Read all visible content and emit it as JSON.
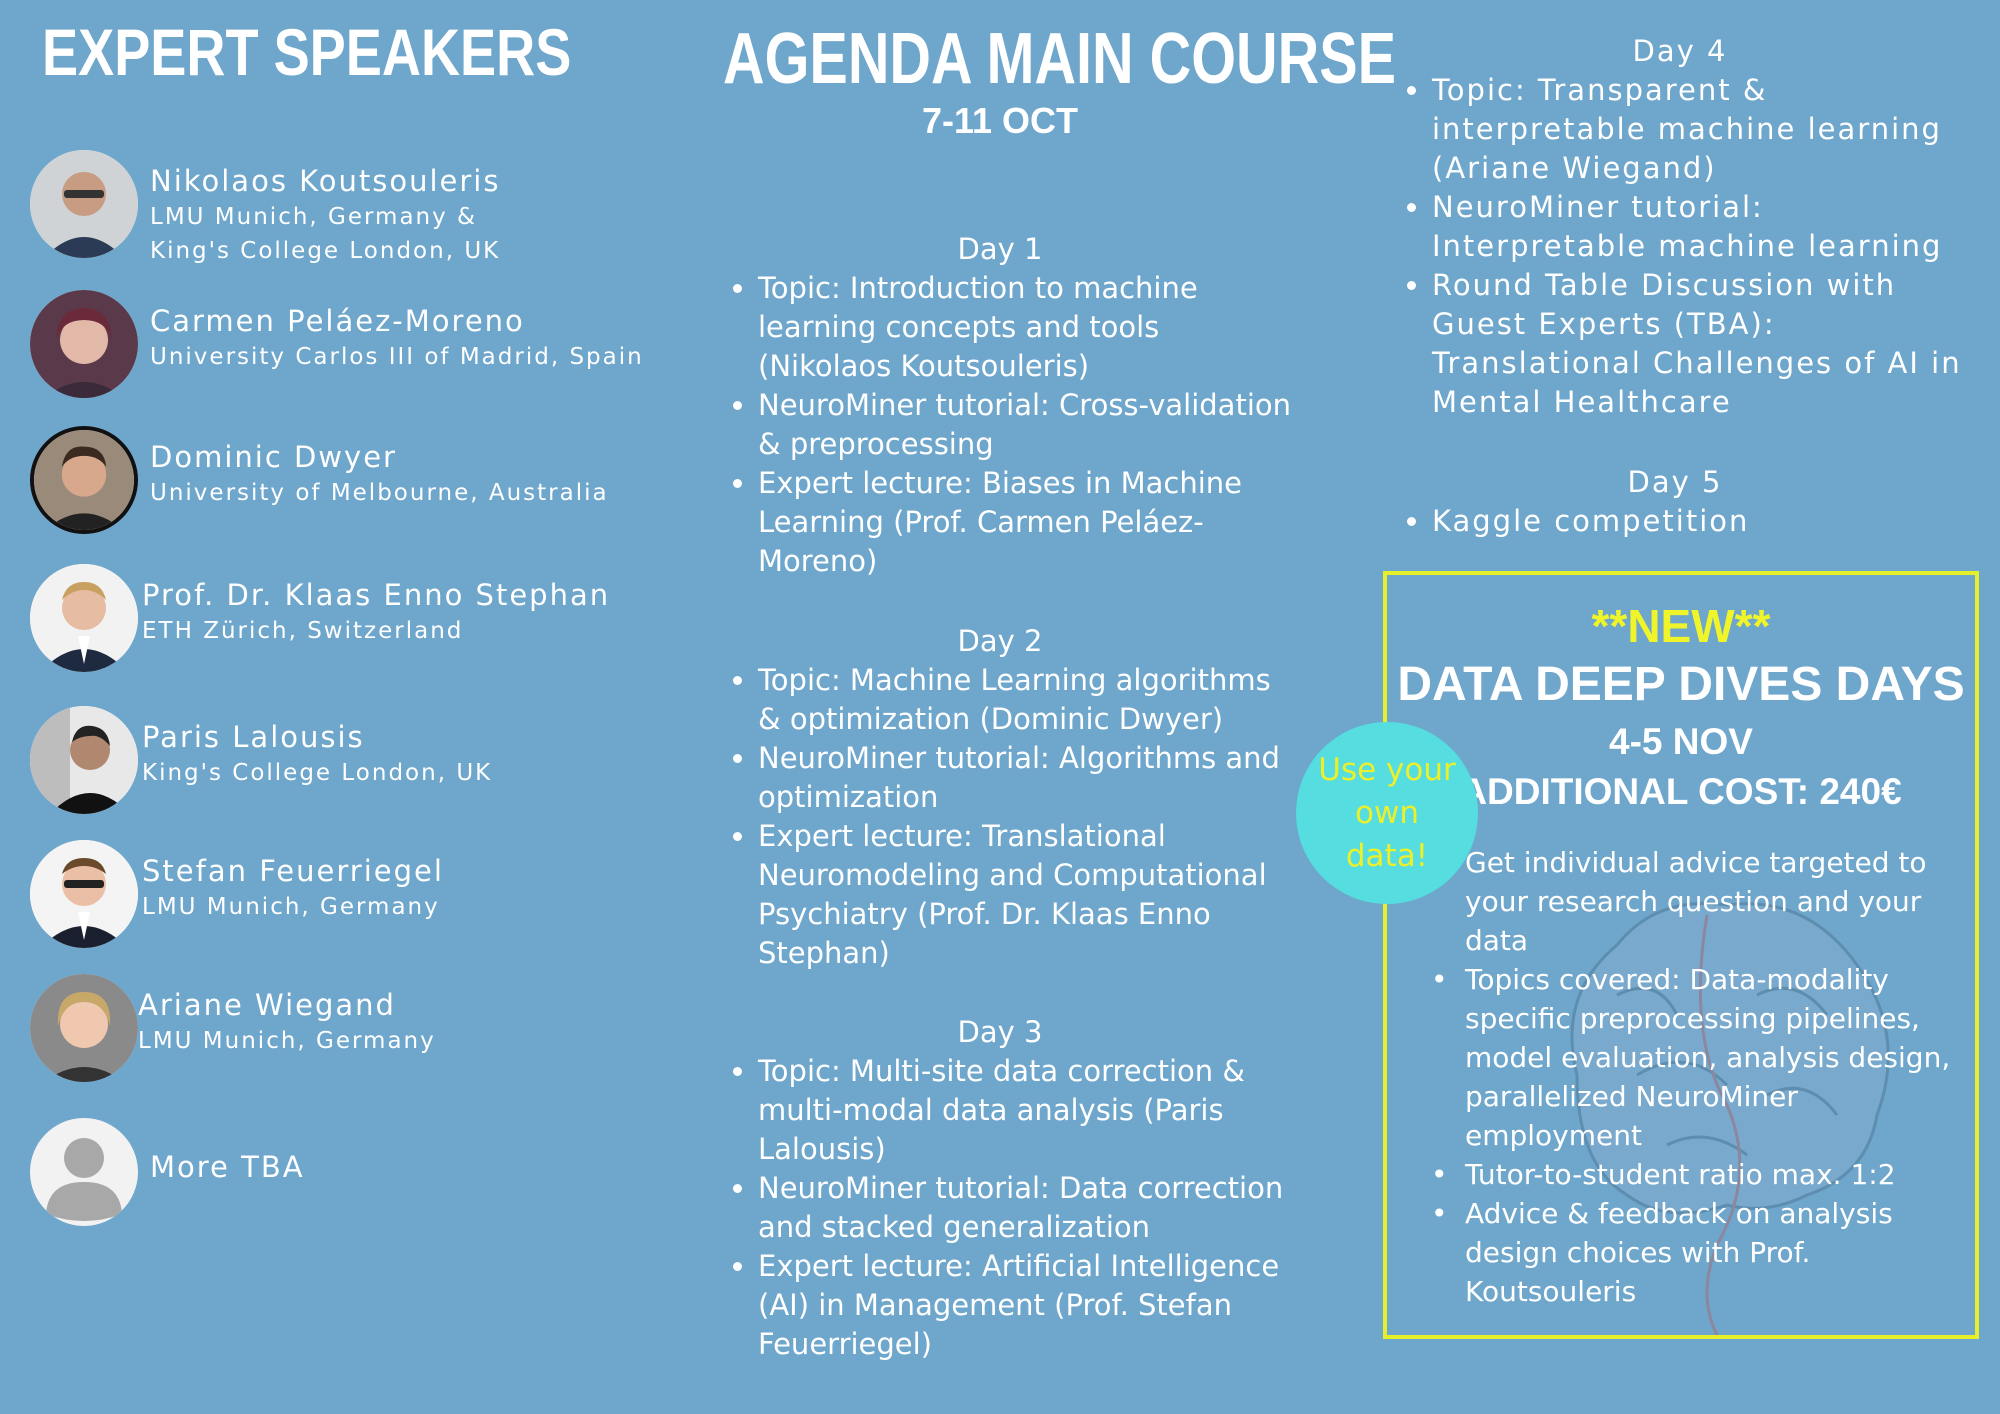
{
  "speakers": {
    "title": "EXPERT SPEAKERS",
    "items": [
      {
        "name": "Nikolaos Koutsouleris",
        "affiliation": [
          "LMU Munich, Germany &",
          "King's College London, UK"
        ],
        "avatar_icon": "person-photo-icon"
      },
      {
        "name": "Carmen Peláez-Moreno",
        "affiliation": [
          "University Carlos III of Madrid, Spain"
        ],
        "avatar_icon": "person-photo-icon"
      },
      {
        "name": "Dominic Dwyer",
        "affiliation": [
          "University of Melbourne, Australia"
        ],
        "avatar_icon": "person-photo-icon"
      },
      {
        "name": "Prof. Dr. Klaas Enno Stephan",
        "affiliation": [
          "ETH Zürich, Switzerland"
        ],
        "avatar_icon": "person-photo-icon"
      },
      {
        "name": "Paris Lalousis",
        "affiliation": [
          "King's College London, UK"
        ],
        "avatar_icon": "person-photo-icon"
      },
      {
        "name": "Stefan Feuerriegel",
        "affiliation": [
          "LMU Munich, Germany"
        ],
        "avatar_icon": "person-photo-icon"
      },
      {
        "name": "Ariane Wiegand",
        "affiliation": [
          "LMU Munich, Germany"
        ],
        "avatar_icon": "person-photo-icon"
      },
      {
        "name": "More TBA",
        "affiliation": [],
        "avatar_icon": "placeholder-avatar-icon"
      }
    ]
  },
  "agenda": {
    "title": "AGENDA MAIN COURSE",
    "dates": "7-11 OCT",
    "days": [
      {
        "label": "Day 1",
        "items": [
          "Topic: Introduction to machine learning concepts and tools (Nikolaos Koutsouleris)",
          "NeuroMiner tutorial: Cross-validation & preprocessing",
          "Expert lecture: Biases in Machine Learning (Prof. Carmen Peláez-Moreno)"
        ]
      },
      {
        "label": "Day 2",
        "items": [
          "Topic: Machine Learning algorithms & optimization (Dominic Dwyer)",
          "NeuroMiner tutorial: Algorithms and optimization",
          "Expert lecture: Translational Neuromodeling and Computational Psychiatry (Prof. Dr. Klaas Enno Stephan)"
        ]
      },
      {
        "label": "Day 3",
        "items": [
          "Topic: Multi-site data correction & multi-modal data analysis (Paris Lalousis)",
          "NeuroMiner tutorial: Data correction and stacked generalization",
          "Expert lecture: Artificial Intelligence (AI) in Management (Prof. Stefan Feuerriegel)"
        ]
      },
      {
        "label": "Day 4",
        "items": [
          "Topic: Transparent & interpretable machine learning (Ariane Wiegand)",
          "NeuroMiner tutorial: Interpretable machine learning",
          "Round Table Discussion with Guest Experts (TBA): Translational Challenges of AI in Mental Healthcare"
        ]
      },
      {
        "label": "Day 5",
        "items": [
          "Kaggle competition"
        ]
      }
    ]
  },
  "deep_dive": {
    "tag": "**NEW**",
    "title": "DATA DEEP DIVES DAYS",
    "dates": "4-5 NOV",
    "cost": "ADDITIONAL COST: 240€",
    "bubble": "Use your own data!",
    "intro": "Get  individual advice targeted to your research question and your data",
    "items": [
      "Topics covered: Data-modality specific preprocessing pipelines, model evaluation, analysis design, parallelized NeuroMiner employment",
      "Tutor-to-student ratio max. 1:2",
      "Advice & feedback on analysis design choices with Prof. Koutsouleris"
    ],
    "background_icon": "brain-icon"
  },
  "colors": {
    "background": "#6ea6cc",
    "text": "#ffffff",
    "highlight": "#f0f52a",
    "box_border": "#e5f02b",
    "bubble": "#55dde0"
  }
}
